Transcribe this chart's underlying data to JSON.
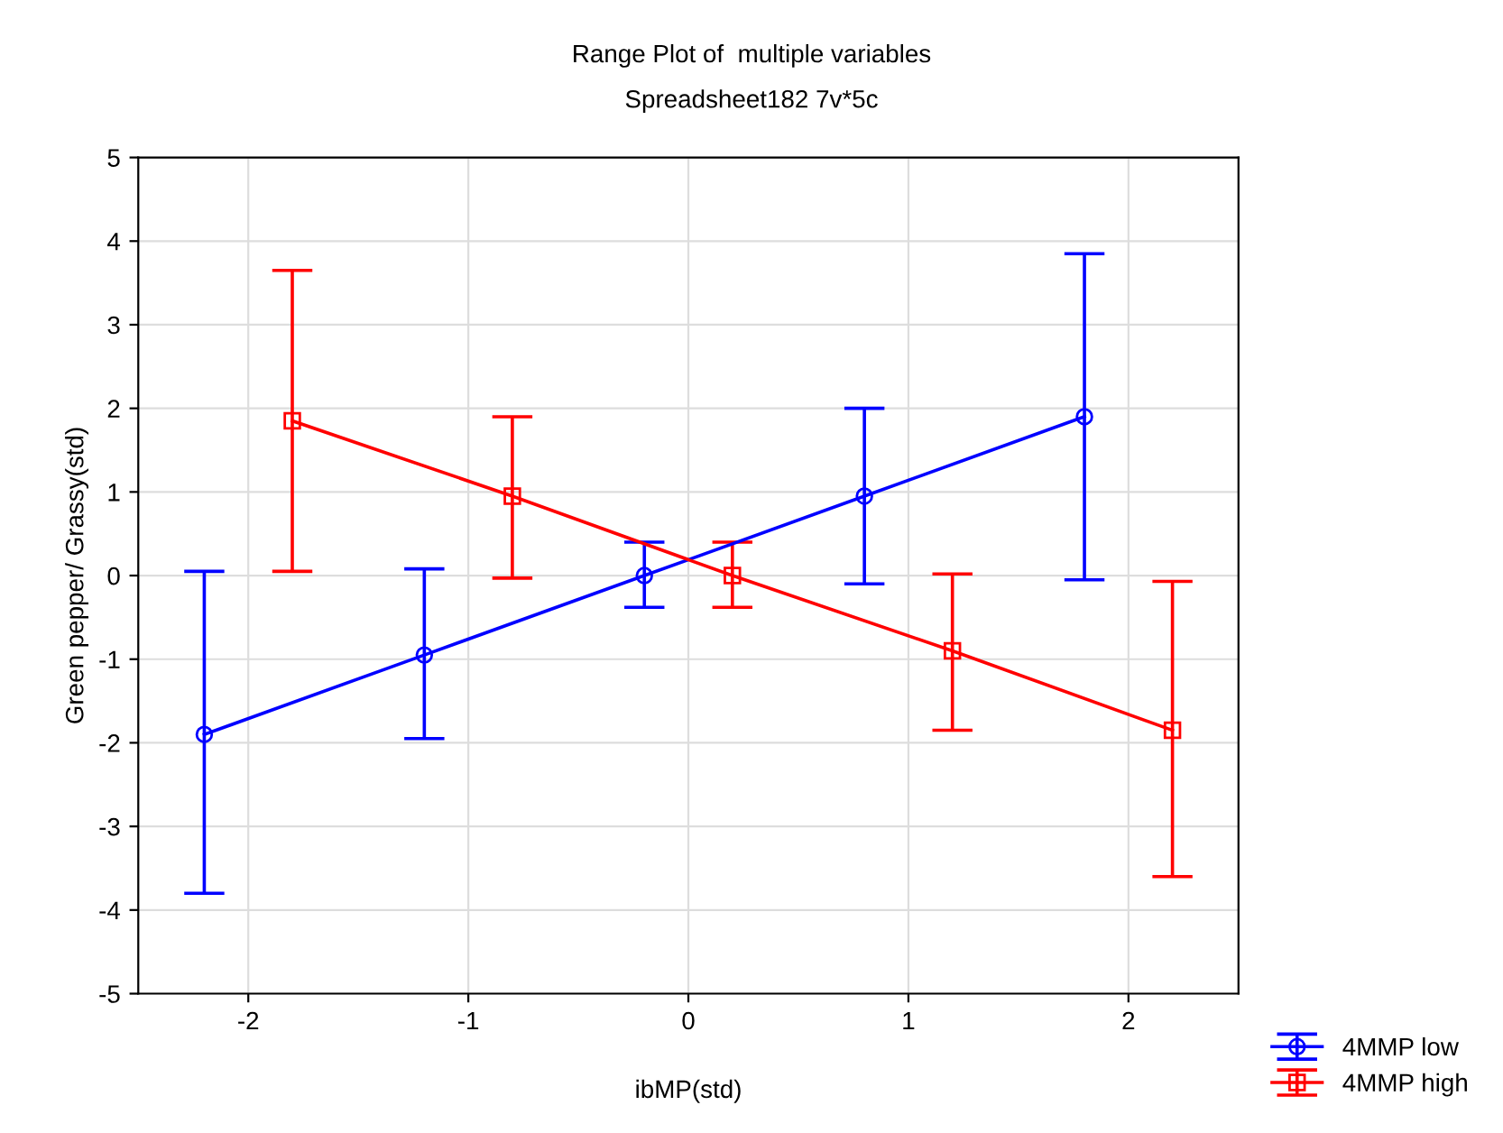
{
  "chart_data": {
    "type": "line",
    "title": "Range Plot of  multiple variables",
    "subtitle": "Spreadsheet182 7v*5c",
    "xlabel": "ibMP(std)",
    "ylabel": "Green pepper/ Grassy(std)",
    "xlim": [
      -2.5,
      2.5
    ],
    "xticks": [
      -2,
      -1,
      0,
      1,
      2
    ],
    "ylim": [
      -5,
      5
    ],
    "yticks": [
      -5,
      -4,
      -3,
      -2,
      -1,
      0,
      1,
      2,
      3,
      4,
      5
    ],
    "grid": true,
    "legend": "bottom right",
    "series": [
      {
        "name": "4MMP low",
        "color": "#0000ff",
        "marker": "circle",
        "x": [
          -2.2,
          -1.2,
          -0.2,
          0.8,
          1.8
        ],
        "values": [
          -1.9,
          -0.95,
          0,
          0.95,
          1.9
        ],
        "errors": [
          [
            -3.8,
            0.05
          ],
          [
            -1.95,
            0.08
          ],
          [
            -0.38,
            0.4
          ],
          [
            -0.1,
            2.0
          ],
          [
            -0.05,
            3.85
          ]
        ]
      },
      {
        "name": "4MMP high",
        "color": "#ff0000",
        "marker": "square",
        "x": [
          -1.8,
          -0.8,
          0.2,
          1.2,
          2.2
        ],
        "values": [
          1.85,
          0.95,
          0,
          -0.9,
          -1.85
        ],
        "errors": [
          [
            0.05,
            3.65
          ],
          [
            -0.03,
            1.9
          ],
          [
            -0.38,
            0.4
          ],
          [
            -1.85,
            0.02
          ],
          [
            -3.6,
            -0.07
          ]
        ]
      }
    ]
  }
}
